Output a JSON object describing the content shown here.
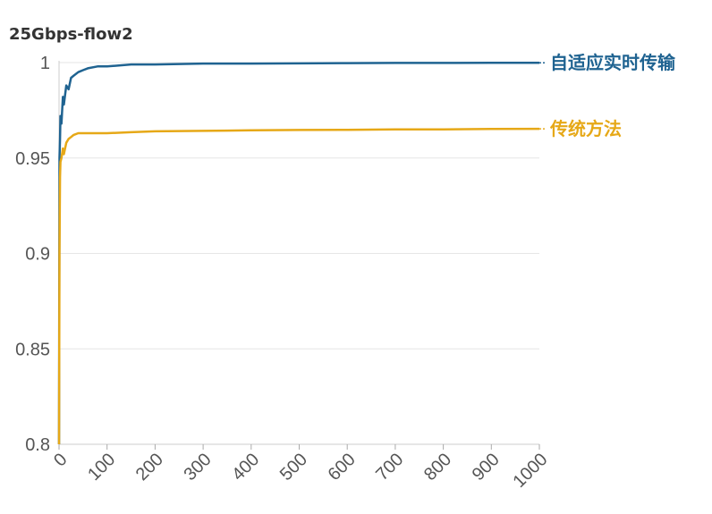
{
  "chart_data": {
    "type": "line",
    "title": "25Gbps-flow2",
    "xlabel": "",
    "ylabel": "",
    "xlim": [
      0,
      1000
    ],
    "ylim": [
      0.8,
      1.0
    ],
    "x_ticks": [
      "0",
      "100",
      "200",
      "300",
      "400",
      "500",
      "600",
      "700",
      "800",
      "900",
      "1000"
    ],
    "y_ticks": [
      "0.8",
      "0.85",
      "0.9",
      "0.95",
      "1"
    ],
    "grid": true,
    "legend": "inline-right",
    "series": [
      {
        "name": "自适应实时传输",
        "color": "#1f6391",
        "x": [
          0,
          1,
          2,
          3,
          5,
          8,
          10,
          15,
          20,
          25,
          30,
          40,
          50,
          60,
          80,
          100,
          150,
          200,
          300,
          400,
          500,
          600,
          700,
          800,
          900,
          1000
        ],
        "y": [
          0.8,
          0.95,
          0.96,
          0.972,
          0.968,
          0.982,
          0.978,
          0.988,
          0.986,
          0.992,
          0.993,
          0.995,
          0.996,
          0.997,
          0.998,
          0.998,
          0.999,
          0.999,
          0.9995,
          0.9995,
          0.9996,
          0.9997,
          0.9998,
          0.9998,
          0.9999,
          0.9999
        ]
      },
      {
        "name": "传统方法",
        "color": "#e6a817",
        "x": [
          0,
          1,
          2,
          3,
          5,
          8,
          10,
          15,
          20,
          25,
          30,
          40,
          50,
          60,
          80,
          100,
          150,
          200,
          300,
          400,
          500,
          600,
          700,
          800,
          900,
          1000
        ],
        "y": [
          0.8,
          0.9,
          0.94,
          0.948,
          0.95,
          0.955,
          0.952,
          0.958,
          0.96,
          0.961,
          0.962,
          0.963,
          0.963,
          0.963,
          0.963,
          0.963,
          0.9635,
          0.964,
          0.9642,
          0.9645,
          0.9647,
          0.9648,
          0.965,
          0.965,
          0.9652,
          0.9653
        ]
      }
    ]
  }
}
